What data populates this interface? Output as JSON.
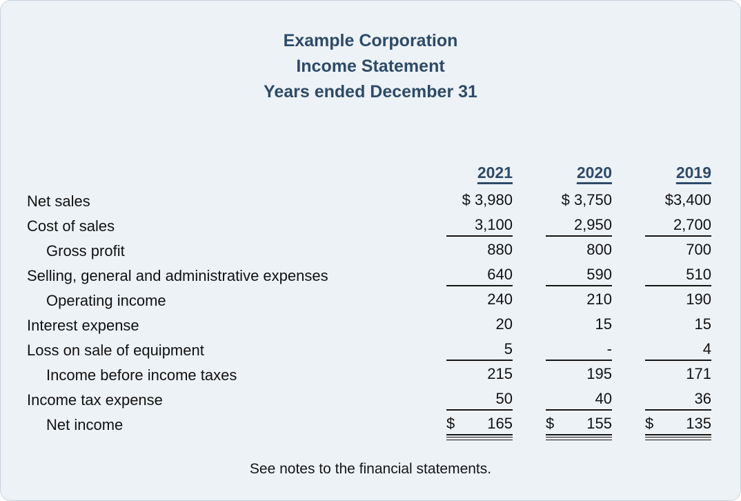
{
  "header": {
    "company": "Example Corporation",
    "statement": "Income Statement",
    "period": "Years ended December 31"
  },
  "table": {
    "year_headers": [
      "2021",
      "2020",
      "2019"
    ],
    "rows": [
      {
        "label": "Net sales",
        "indent": false,
        "underline": "none",
        "values": [
          "$ 3,980",
          "$ 3,750",
          "$3,400"
        ]
      },
      {
        "label": "Cost of sales",
        "indent": false,
        "underline": "single",
        "values": [
          "3,100",
          "2,950",
          "2,700"
        ]
      },
      {
        "label": "Gross profit",
        "indent": true,
        "underline": "none",
        "values": [
          "880",
          "800",
          "700"
        ]
      },
      {
        "label": "Selling, general and administrative expenses",
        "indent": false,
        "underline": "single",
        "values": [
          "640",
          "590",
          "510"
        ]
      },
      {
        "label": "Operating income",
        "indent": true,
        "underline": "none",
        "values": [
          "240",
          "210",
          "190"
        ]
      },
      {
        "label": "Interest expense",
        "indent": false,
        "underline": "none",
        "values": [
          "20",
          "15",
          "15"
        ]
      },
      {
        "label": "Loss on sale of equipment",
        "indent": false,
        "underline": "single",
        "values": [
          "5",
          "-",
          "4"
        ]
      },
      {
        "label": "Income before income taxes",
        "indent": true,
        "underline": "none",
        "values": [
          "215",
          "195",
          "171"
        ]
      },
      {
        "label": "Income tax expense",
        "indent": false,
        "underline": "single",
        "values": [
          "50",
          "40",
          "36"
        ]
      },
      {
        "label": "Net income",
        "indent": true,
        "underline": "double",
        "prefix": "$",
        "values": [
          "165",
          "155",
          "135"
        ]
      }
    ]
  },
  "footnote": "See notes to the financial statements.",
  "colors": {
    "accent": "#2d4b68",
    "card_background": "#edf2f7",
    "card_border": "#c9d3dc",
    "text": "#141414"
  }
}
